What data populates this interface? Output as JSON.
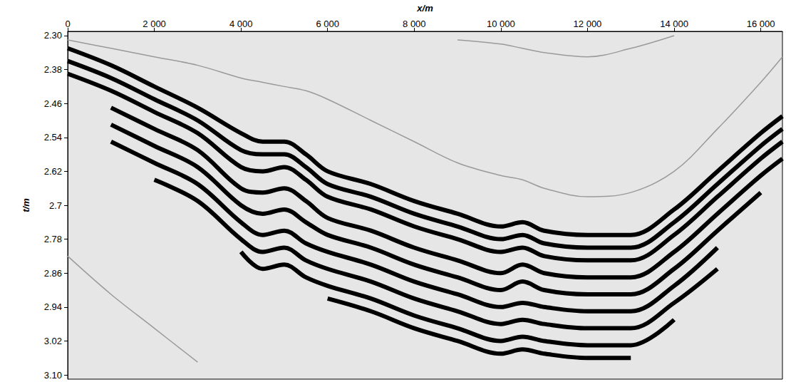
{
  "chart_data": {
    "type": "line",
    "x_label": "x/m",
    "y_label": "t/m",
    "x": [
      0,
      1000,
      2000,
      3000,
      4000,
      4500,
      5000,
      5500,
      6000,
      7000,
      8000,
      9000,
      10000,
      10500,
      11000,
      12000,
      13000,
      14000,
      15000,
      16000,
      16500
    ],
    "series": [
      {
        "color": "#9a9a9a",
        "values": [
          null,
          null,
          null,
          null,
          null,
          null,
          null,
          null,
          null,
          null,
          null,
          2.31,
          2.32,
          2.33,
          2.34,
          2.35,
          2.33,
          2.3,
          null,
          null,
          null
        ]
      },
      {
        "color": "#9a9a9a",
        "values": [
          2.31,
          2.33,
          2.35,
          2.37,
          2.4,
          2.41,
          2.42,
          2.43,
          2.45,
          2.5,
          2.55,
          2.6,
          2.63,
          2.64,
          2.66,
          2.68,
          2.67,
          2.62,
          2.52,
          2.41,
          2.35
        ]
      },
      {
        "color": "#9a9a9a",
        "values": [
          2.82,
          2.91,
          2.99,
          3.07,
          null,
          null,
          null,
          null,
          null,
          null,
          null,
          null,
          null,
          null,
          null,
          null,
          null,
          null,
          null,
          null,
          null
        ]
      },
      {
        "color": "#000000",
        "values": [
          2.33,
          2.37,
          2.42,
          2.47,
          2.53,
          2.55,
          2.55,
          2.58,
          2.62,
          2.65,
          2.69,
          2.72,
          2.75,
          2.74,
          2.76,
          2.77,
          2.77,
          2.71,
          2.62,
          2.53,
          2.49
        ]
      },
      {
        "color": "#000000",
        "values": [
          2.36,
          2.4,
          2.45,
          2.5,
          2.57,
          2.58,
          2.58,
          2.61,
          2.65,
          2.68,
          2.72,
          2.75,
          2.78,
          2.77,
          2.79,
          2.8,
          2.8,
          2.74,
          2.65,
          2.56,
          2.52
        ]
      },
      {
        "color": "#000000",
        "values": [
          2.39,
          2.43,
          2.48,
          2.53,
          2.61,
          2.62,
          2.61,
          2.64,
          2.68,
          2.71,
          2.75,
          2.78,
          2.81,
          2.8,
          2.82,
          2.83,
          2.83,
          2.77,
          2.68,
          2.59,
          2.55
        ]
      },
      {
        "color": "#000000",
        "values": [
          null,
          2.47,
          2.52,
          2.57,
          2.66,
          2.67,
          2.66,
          2.69,
          2.73,
          2.76,
          2.8,
          2.83,
          2.86,
          2.84,
          2.86,
          2.87,
          2.87,
          2.81,
          2.72,
          2.63,
          2.59
        ]
      },
      {
        "color": "#000000",
        "values": [
          null,
          2.51,
          2.56,
          2.61,
          2.7,
          2.72,
          2.71,
          2.74,
          2.77,
          2.8,
          2.84,
          2.87,
          2.9,
          2.88,
          2.9,
          2.91,
          2.91,
          2.85,
          2.76,
          2.67,
          null
        ]
      },
      {
        "color": "#000000",
        "values": [
          null,
          2.55,
          2.6,
          2.65,
          2.74,
          2.77,
          2.76,
          2.79,
          2.81,
          2.84,
          2.88,
          2.91,
          2.94,
          2.93,
          2.94,
          2.95,
          2.95,
          2.89,
          2.8,
          null,
          null
        ]
      },
      {
        "color": "#000000",
        "values": [
          null,
          null,
          2.64,
          2.69,
          2.78,
          2.81,
          2.8,
          2.83,
          2.85,
          2.88,
          2.92,
          2.95,
          2.98,
          2.97,
          2.98,
          2.99,
          2.99,
          2.93,
          2.85,
          null,
          null
        ]
      },
      {
        "color": "#000000",
        "values": [
          null,
          null,
          null,
          null,
          2.81,
          2.85,
          2.84,
          2.87,
          2.89,
          2.92,
          2.96,
          2.99,
          3.02,
          3.01,
          3.02,
          3.03,
          3.03,
          2.97,
          null,
          null,
          null
        ]
      },
      {
        "color": "#000000",
        "values": [
          null,
          null,
          null,
          null,
          null,
          null,
          null,
          null,
          2.92,
          2.95,
          2.99,
          3.02,
          3.05,
          3.04,
          3.05,
          3.06,
          3.06,
          null,
          null,
          null,
          null
        ]
      }
    ],
    "xlim": [
      0,
      16500
    ],
    "xticks": [
      0,
      {
        "value": 2000,
        "label": "2 000"
      },
      {
        "value": 4000,
        "label": "4 000"
      },
      {
        "value": 6000,
        "label": "6 000"
      },
      {
        "value": 8000,
        "label": "8 000"
      },
      {
        "value": 10000,
        "label": "10 000"
      },
      {
        "value": 12000,
        "label": "12 000"
      },
      {
        "value": 14000,
        "label": "14 000"
      },
      {
        "value": 16000,
        "label": "16 000"
      }
    ],
    "ylim": [
      2.29,
      3.11
    ],
    "yticks": [
      {
        "value": 2.3,
        "label": "2.30"
      },
      2.38,
      2.46,
      2.54,
      2.62,
      2.7,
      2.78,
      2.86,
      2.94,
      3.02,
      {
        "value": 3.1,
        "label": "3.10"
      }
    ],
    "grid": false,
    "marker": "none",
    "line_style": "solid"
  }
}
